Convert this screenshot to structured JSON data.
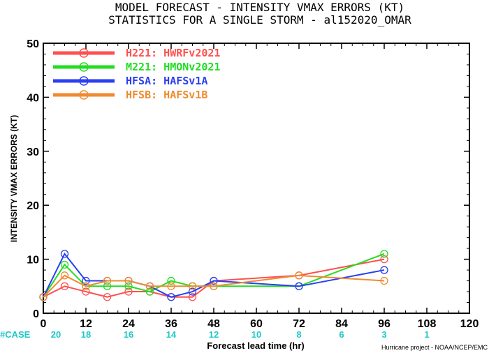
{
  "title_line1": "MODEL FORECAST - INTENSITY VMAX ERRORS (KT)",
  "title_line2": "STATISTICS FOR A SINGLE STORM - al152020_OMAR",
  "credit": "Hurricane project - NOAA/NCEP/EMC",
  "case_prefix": "#CASE",
  "chart_data": {
    "type": "line",
    "title": "MODEL FORECAST - INTENSITY VMAX ERRORS (KT)",
    "subtitle": "STATISTICS FOR A SINGLE STORM - al152020_OMAR",
    "xlabel": "Forecast lead time (hr)",
    "ylabel": "INTENSITY VMAX ERRORS (KT)",
    "xlim": [
      0,
      120
    ],
    "ylim": [
      0,
      50
    ],
    "xticks": [
      0,
      12,
      24,
      36,
      48,
      60,
      72,
      84,
      96,
      108,
      120
    ],
    "yticks": [
      0,
      10,
      20,
      30,
      40,
      50
    ],
    "grid": false,
    "legend": "top-left",
    "case_counts": [
      {
        "x": 0,
        "label": "20"
      },
      {
        "x": 12,
        "label": "18"
      },
      {
        "x": 24,
        "label": "16"
      },
      {
        "x": 36,
        "label": "14"
      },
      {
        "x": 48,
        "label": "12"
      },
      {
        "x": 60,
        "label": "10"
      },
      {
        "x": 72,
        "label": "8"
      },
      {
        "x": 84,
        "label": "6"
      },
      {
        "x": 96,
        "label": "3"
      },
      {
        "x": 108,
        "label": "1"
      }
    ],
    "series": [
      {
        "name": "H221: HWRFv2021",
        "color": "#ff4f4f",
        "x": [
          0,
          6,
          12,
          18,
          24,
          30,
          36,
          42,
          48,
          72,
          96
        ],
        "y": [
          3,
          5,
          4,
          3,
          4,
          4,
          3,
          3,
          6,
          7,
          10
        ]
      },
      {
        "name": "M221: HMONv2021",
        "color": "#22dd22",
        "x": [
          0,
          6,
          12,
          18,
          24,
          30,
          36,
          42,
          48,
          72,
          96
        ],
        "y": [
          3,
          9,
          5,
          5,
          5,
          4,
          6,
          5,
          5,
          5,
          11
        ]
      },
      {
        "name": "HFSA: HAFSv1A",
        "color": "#2a3ff0",
        "x": [
          0,
          6,
          12,
          18,
          24,
          30,
          36,
          42,
          48,
          72,
          96
        ],
        "y": [
          3,
          11,
          6,
          6,
          6,
          5,
          3,
          4,
          6,
          5,
          8
        ]
      },
      {
        "name": "HFSB: HAFSv1B",
        "color": "#f08a30",
        "x": [
          0,
          6,
          12,
          18,
          24,
          30,
          36,
          42,
          48,
          72,
          96
        ],
        "y": [
          3,
          7,
          5,
          6,
          6,
          5,
          5,
          5,
          5,
          7,
          6
        ]
      }
    ]
  }
}
